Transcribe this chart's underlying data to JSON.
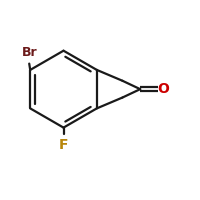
{
  "background_color": "#ffffff",
  "figsize": [
    2.0,
    2.0
  ],
  "dpi": 100,
  "bond_color": "#1a1a1a",
  "bond_width": 1.6,
  "dbo": 0.022,
  "Br_label": "Br",
  "Br_color": "#6b1a1a",
  "F_label": "F",
  "F_color": "#b8860b",
  "O_label": "O",
  "O_color": "#cc0000",
  "label_fontsize": 9.0
}
